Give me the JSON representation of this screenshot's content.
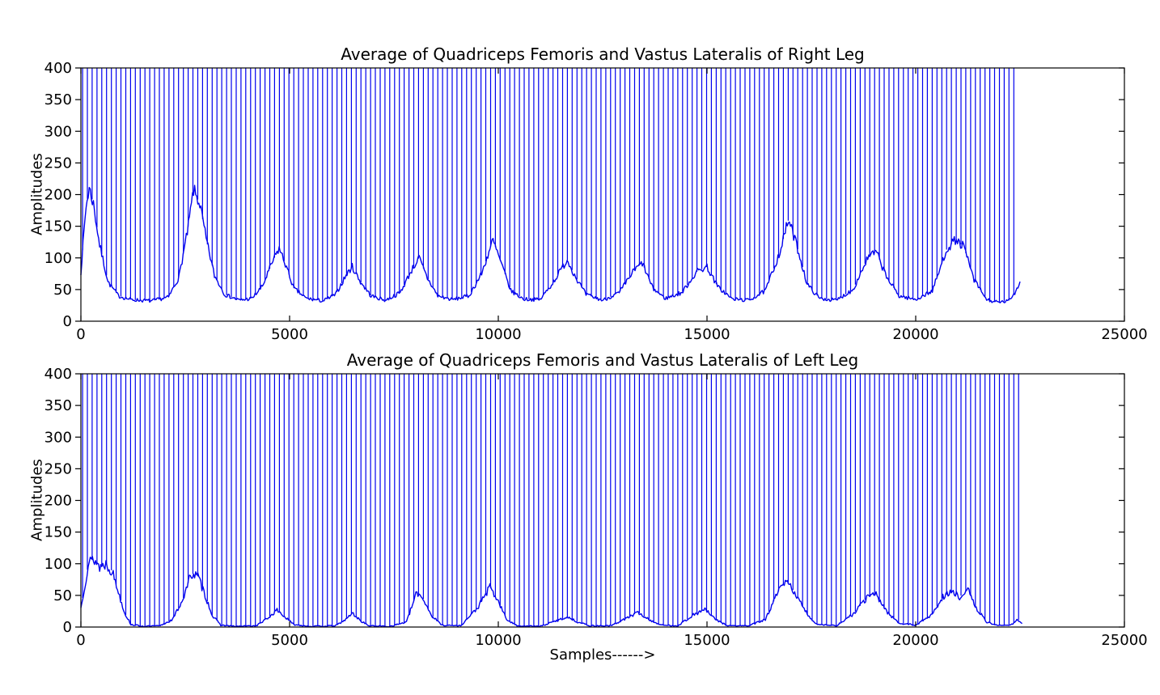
{
  "figure": {
    "background": "#ffffff",
    "xlabel": "Samples------>"
  },
  "chart_data": [
    {
      "type": "line",
      "title": "Average of Quadriceps Femoris and Vastus Lateralis of Right Leg",
      "ylabel": "Amplitudes",
      "xlabel": "",
      "xlim": [
        0,
        25000
      ],
      "ylim": [
        0,
        400
      ],
      "x_ticks": [
        0,
        5000,
        10000,
        15000,
        20000,
        25000
      ],
      "y_ticks": [
        0,
        50,
        100,
        150,
        200,
        250,
        300,
        350,
        400
      ],
      "grid": false,
      "legend": "none",
      "line_color": "#0000ee",
      "signal_description": "EMG envelope with periodic stimulus spikes clipped at ymax=400; data ends near sample 22500; baseline ~30",
      "spikes": {
        "start": 40,
        "interval": 115,
        "end": 22460,
        "top_value": 400
      },
      "envelope_keypoints": [
        [
          0,
          78
        ],
        [
          120,
          180
        ],
        [
          200,
          210
        ],
        [
          300,
          185
        ],
        [
          450,
          120
        ],
        [
          650,
          62
        ],
        [
          900,
          40
        ],
        [
          1200,
          34
        ],
        [
          1700,
          32
        ],
        [
          2100,
          38
        ],
        [
          2350,
          70
        ],
        [
          2550,
          140
        ],
        [
          2700,
          207
        ],
        [
          2850,
          185
        ],
        [
          3000,
          130
        ],
        [
          3200,
          72
        ],
        [
          3450,
          42
        ],
        [
          3800,
          33
        ],
        [
          4100,
          36
        ],
        [
          4350,
          55
        ],
        [
          4600,
          95
        ],
        [
          4750,
          115
        ],
        [
          4900,
          90
        ],
        [
          5100,
          52
        ],
        [
          5400,
          36
        ],
        [
          5800,
          32
        ],
        [
          6100,
          42
        ],
        [
          6350,
          72
        ],
        [
          6500,
          86
        ],
        [
          6700,
          62
        ],
        [
          6950,
          40
        ],
        [
          7300,
          33
        ],
        [
          7650,
          45
        ],
        [
          7900,
          78
        ],
        [
          8100,
          100
        ],
        [
          8300,
          68
        ],
        [
          8550,
          40
        ],
        [
          8900,
          34
        ],
        [
          9300,
          40
        ],
        [
          9600,
          75
        ],
        [
          9870,
          128
        ],
        [
          10050,
          95
        ],
        [
          10300,
          48
        ],
        [
          10600,
          35
        ],
        [
          11000,
          34
        ],
        [
          11300,
          60
        ],
        [
          11650,
          97
        ],
        [
          11850,
          70
        ],
        [
          12100,
          42
        ],
        [
          12500,
          33
        ],
        [
          12900,
          45
        ],
        [
          13250,
          80
        ],
        [
          13450,
          92
        ],
        [
          13700,
          52
        ],
        [
          14000,
          36
        ],
        [
          14400,
          45
        ],
        [
          14750,
          78
        ],
        [
          15000,
          86
        ],
        [
          15250,
          55
        ],
        [
          15600,
          35
        ],
        [
          16000,
          33
        ],
        [
          16400,
          48
        ],
        [
          16750,
          110
        ],
        [
          16950,
          160
        ],
        [
          17150,
          120
        ],
        [
          17400,
          58
        ],
        [
          17700,
          36
        ],
        [
          18100,
          33
        ],
        [
          18500,
          50
        ],
        [
          18850,
          100
        ],
        [
          19050,
          110
        ],
        [
          19300,
          70
        ],
        [
          19600,
          40
        ],
        [
          20000,
          34
        ],
        [
          20400,
          48
        ],
        [
          20750,
          115
        ],
        [
          20950,
          128
        ],
        [
          21150,
          118
        ],
        [
          21400,
          65
        ],
        [
          21700,
          34
        ],
        [
          22000,
          29
        ],
        [
          22250,
          33
        ],
        [
          22400,
          48
        ],
        [
          22500,
          62
        ]
      ],
      "noise": {
        "seed": 7,
        "base": 1.2,
        "factor": 0.05,
        "floor": 26
      }
    },
    {
      "type": "line",
      "title": "Average of Quadriceps Femoris and Vastus Lateralis of Left Leg",
      "ylabel": "Amplitudes",
      "xlabel": "Samples------>",
      "xlim": [
        0,
        25000
      ],
      "ylim": [
        0,
        400
      ],
      "x_ticks": [
        0,
        5000,
        10000,
        15000,
        20000,
        25000
      ],
      "y_ticks": [
        0,
        50,
        100,
        150,
        200,
        250,
        300,
        350,
        400
      ],
      "grid": false,
      "legend": "none",
      "line_color": "#0000ee",
      "signal_description": "EMG envelope with periodic stimulus spikes clipped at ymax=400; data ends near sample 22550; baseline ~0",
      "spikes": {
        "start": 40,
        "interval": 115,
        "end": 22500,
        "top_value": 400
      },
      "envelope_keypoints": [
        [
          0,
          30
        ],
        [
          80,
          62
        ],
        [
          180,
          100
        ],
        [
          300,
          108
        ],
        [
          450,
          95
        ],
        [
          600,
          100
        ],
        [
          750,
          88
        ],
        [
          900,
          55
        ],
        [
          1050,
          22
        ],
        [
          1200,
          4
        ],
        [
          1500,
          1
        ],
        [
          1900,
          2
        ],
        [
          2200,
          12
        ],
        [
          2450,
          45
        ],
        [
          2650,
          85
        ],
        [
          2800,
          80
        ],
        [
          2950,
          55
        ],
        [
          3150,
          18
        ],
        [
          3350,
          3
        ],
        [
          3700,
          1
        ],
        [
          4200,
          2
        ],
        [
          4500,
          15
        ],
        [
          4700,
          27
        ],
        [
          4900,
          15
        ],
        [
          5100,
          4
        ],
        [
          5500,
          1
        ],
        [
          6100,
          2
        ],
        [
          6350,
          12
        ],
        [
          6500,
          22
        ],
        [
          6700,
          10
        ],
        [
          6900,
          2
        ],
        [
          7400,
          1
        ],
        [
          7800,
          8
        ],
        [
          8050,
          55
        ],
        [
          8200,
          45
        ],
        [
          8400,
          18
        ],
        [
          8650,
          3
        ],
        [
          9100,
          2
        ],
        [
          9500,
          30
        ],
        [
          9800,
          63
        ],
        [
          10000,
          40
        ],
        [
          10200,
          12
        ],
        [
          10450,
          2
        ],
        [
          11000,
          1
        ],
        [
          11400,
          10
        ],
        [
          11650,
          16
        ],
        [
          11900,
          8
        ],
        [
          12200,
          2
        ],
        [
          12700,
          2
        ],
        [
          13100,
          15
        ],
        [
          13350,
          23
        ],
        [
          13600,
          12
        ],
        [
          13900,
          3
        ],
        [
          14300,
          2
        ],
        [
          14650,
          18
        ],
        [
          14950,
          28
        ],
        [
          15200,
          12
        ],
        [
          15500,
          2
        ],
        [
          16000,
          2
        ],
        [
          16400,
          12
        ],
        [
          16700,
          55
        ],
        [
          16900,
          72
        ],
        [
          17100,
          55
        ],
        [
          17350,
          25
        ],
        [
          17600,
          5
        ],
        [
          18100,
          2
        ],
        [
          18500,
          20
        ],
        [
          18850,
          48
        ],
        [
          19050,
          52
        ],
        [
          19300,
          25
        ],
        [
          19600,
          6
        ],
        [
          20000,
          3
        ],
        [
          20400,
          20
        ],
        [
          20650,
          48
        ],
        [
          20850,
          55
        ],
        [
          21050,
          48
        ],
        [
          21250,
          58
        ],
        [
          21450,
          30
        ],
        [
          21700,
          8
        ],
        [
          22000,
          2
        ],
        [
          22300,
          4
        ],
        [
          22450,
          12
        ],
        [
          22550,
          6
        ]
      ],
      "noise": {
        "seed": 13,
        "base": 0.8,
        "factor": 0.09,
        "floor": 0.3
      }
    }
  ]
}
